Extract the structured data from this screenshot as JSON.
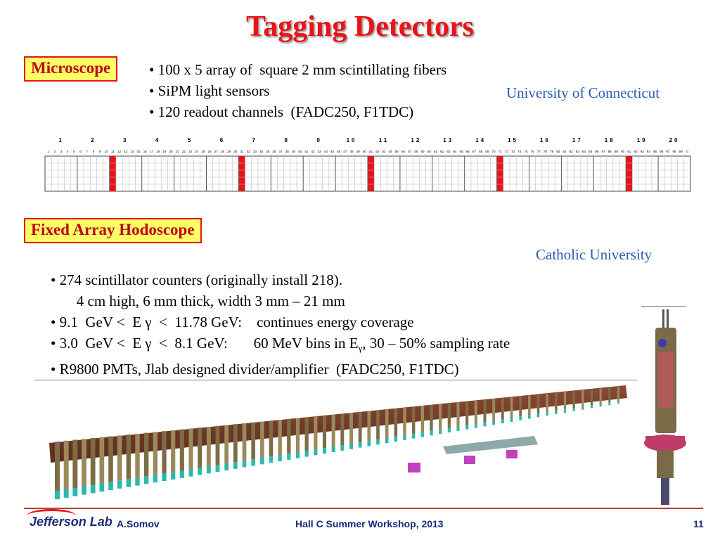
{
  "title": "Tagging Detectors",
  "microscope": {
    "label": "Microscope",
    "bullets": [
      "• 100 x 5 array of  square 2 mm scintillating fibers",
      "• SiPM light sensors",
      "• 120 readout channels  (FADC250, F1TDC)"
    ],
    "institution": "University of Connecticut",
    "group_labels": [
      "1",
      "2",
      "3",
      "4",
      "5",
      "6",
      "7",
      "8",
      "9",
      "10",
      "11",
      "12",
      "13",
      "14",
      "15",
      "16",
      "17",
      "18",
      "19",
      "20"
    ],
    "fiber_count": 100,
    "row_count": 5,
    "highlight_color": "#e8141b",
    "highlighted_columns": [
      21,
      61,
      101,
      141,
      181
    ]
  },
  "hodoscope": {
    "label": "Fixed Array Hodoscope",
    "institution": "Catholic University",
    "bullets": [
      "• 274 scintillator counters (originally install 218).",
      "       4 cm high, 6 mm thick, width 3 mm – 21 mm",
      "• 9.1  GeV <  E γ  <  11.78 GeV:    continues energy coverage",
      "• 3.0  GeV <  E γ  <  8.1 GeV:       60 MeV bins in E",
      "• R9800 PMTs, Jlab designed divider/amplifier  (FADC250, F1TDC)"
    ],
    "bullet4_subscript": "γ",
    "bullet4_tail": ", 30 – 50% sampling rate"
  },
  "footer": {
    "logo": "Jefferson Lab",
    "author": "A.Somov",
    "event": "Hall C Summer Workshop, 2013",
    "page": "11"
  },
  "colors": {
    "title": "#e8141b",
    "box_fill": "#ffff66",
    "box_border": "#e8141b",
    "institution": "#2a5db0",
    "footer_text": "#1b2a78"
  }
}
